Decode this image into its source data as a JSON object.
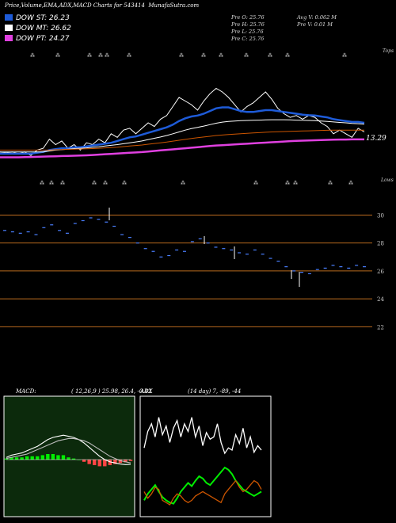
{
  "header": {
    "title": "Price,Volume,EMA,ADX,MACD Charts for 543414",
    "site": "MunafaSutra.com"
  },
  "legend": [
    {
      "label": "DOW ST: 26.23",
      "color": "#1e5bd8"
    },
    {
      "label": "DOW MT: 26.62",
      "color": "#ffffff"
    },
    {
      "label": "DOW PT: 24.27",
      "color": "#e040e0"
    }
  ],
  "stats": {
    "open": "Pre   O: 25.76",
    "high": "Pre   H: 25.76",
    "low": "Pre   L: 25.76",
    "close": "Pre   C: 25.76",
    "avg_volume": "Avg V: 0.062  M",
    "pre_volume": "Pre   V: 0.01 M"
  },
  "price_panel": {
    "top_label": "Tops",
    "bottom_label": "Lows",
    "last_value_label": "13.29"
  },
  "chart_data": [
    {
      "type": "line",
      "name": "price-ema-panel",
      "series": [
        {
          "name": "",
          "color": "#ffffff",
          "values": [
            13.6,
            13.55,
            13.6,
            13.5,
            13.6,
            13.4,
            13.7,
            13.8,
            14.3,
            14.0,
            14.2,
            13.8,
            14.0,
            13.7,
            14.1,
            14.0,
            14.3,
            14.1,
            14.6,
            14.4,
            14.8,
            14.9,
            14.6,
            14.9,
            15.2,
            15.0,
            15.4,
            15.6,
            16.1,
            16.6,
            16.4,
            16.2,
            15.9,
            16.4,
            16.8,
            17.1,
            16.9,
            16.6,
            16.2,
            15.8,
            16.1,
            16.3,
            16.6,
            16.9,
            16.5,
            16.0,
            15.7,
            15.5,
            15.6,
            15.4,
            15.6,
            15.5,
            15.2,
            15.0,
            14.6,
            14.8,
            14.6,
            14.4,
            14.9,
            14.7
          ]
        },
        {
          "name": "",
          "color": "#1e5bd8",
          "values": [
            13.5,
            13.5,
            13.5,
            13.5,
            13.5,
            13.5,
            13.55,
            13.6,
            13.7,
            13.75,
            13.8,
            13.8,
            13.85,
            13.85,
            13.9,
            13.95,
            14.0,
            14.05,
            14.1,
            14.2,
            14.3,
            14.4,
            14.45,
            14.55,
            14.65,
            14.75,
            14.85,
            14.95,
            15.1,
            15.3,
            15.45,
            15.55,
            15.6,
            15.7,
            15.85,
            16.0,
            16.05,
            16.05,
            15.95,
            15.85,
            15.8,
            15.8,
            15.85,
            15.9,
            15.9,
            15.85,
            15.8,
            15.75,
            15.7,
            15.65,
            15.62,
            15.6,
            15.55,
            15.5,
            15.4,
            15.35,
            15.3,
            15.25,
            15.25,
            15.2
          ]
        },
        {
          "name": "",
          "color": "#ffffff",
          "values": [
            13.6,
            13.6,
            13.6,
            13.6,
            13.6,
            13.6,
            13.6,
            13.6,
            13.65,
            13.7,
            13.72,
            13.75,
            13.78,
            13.8,
            13.82,
            13.85,
            13.88,
            13.92,
            13.96,
            14.0,
            14.05,
            14.1,
            14.15,
            14.2,
            14.28,
            14.35,
            14.42,
            14.5,
            14.6,
            14.7,
            14.8,
            14.88,
            14.95,
            15.02,
            15.1,
            15.18,
            15.24,
            15.28,
            15.3,
            15.32,
            15.33,
            15.34,
            15.35,
            15.36,
            15.37,
            15.37,
            15.37,
            15.36,
            15.35,
            15.34,
            15.33,
            15.32,
            15.3,
            15.28,
            15.25,
            15.22,
            15.2,
            15.17,
            15.15,
            15.13
          ]
        },
        {
          "name": "",
          "color": "#cc5500",
          "values": [
            13.7,
            13.7,
            13.7,
            13.7,
            13.7,
            13.7,
            13.7,
            13.7,
            13.7,
            13.72,
            13.73,
            13.74,
            13.75,
            13.76,
            13.77,
            13.78,
            13.8,
            13.82,
            13.84,
            13.86,
            13.89,
            13.92,
            13.95,
            13.98,
            14.02,
            14.06,
            14.1,
            14.14,
            14.19,
            14.24,
            14.29,
            14.34,
            14.38,
            14.42,
            14.46,
            14.5,
            14.53,
            14.56,
            14.58,
            14.6,
            14.62,
            14.64,
            14.66,
            14.68,
            14.7,
            14.71,
            14.72,
            14.73,
            14.74,
            14.75,
            14.76,
            14.77,
            14.78,
            14.79,
            14.8,
            14.8,
            14.8,
            14.8,
            14.8,
            14.8
          ]
        },
        {
          "name": "",
          "color": "#e040e0",
          "values": [
            13.3,
            13.3,
            13.3,
            13.3,
            13.31,
            13.32,
            13.33,
            13.34,
            13.35,
            13.36,
            13.37,
            13.38,
            13.39,
            13.4,
            13.41,
            13.43,
            13.45,
            13.47,
            13.49,
            13.51,
            13.53,
            13.55,
            13.57,
            13.59,
            13.62,
            13.65,
            13.68,
            13.71,
            13.74,
            13.77,
            13.8,
            13.83,
            13.86,
            13.89,
            13.92,
            13.95,
            13.97,
            13.99,
            14.01,
            14.03,
            14.05,
            14.07,
            14.09,
            14.11,
            14.13,
            14.15,
            14.17,
            14.19,
            14.21,
            14.22,
            14.23,
            14.24,
            14.25,
            14.26,
            14.27,
            14.28,
            14.28,
            14.29,
            14.29,
            14.29
          ]
        }
      ],
      "ylim": [
        12.8,
        17.6
      ]
    },
    {
      "type": "scatter",
      "name": "price-ticks-panel",
      "yticks": [
        30,
        28,
        26,
        24,
        22
      ],
      "ylim": [
        21,
        31.5
      ],
      "x": [
        0,
        2,
        4,
        6,
        8,
        10,
        12,
        14,
        16,
        18,
        20,
        22,
        24,
        26,
        28,
        30,
        32,
        34,
        36,
        38,
        40,
        42,
        44,
        46,
        48,
        50,
        52,
        54,
        56,
        58,
        60,
        62,
        64,
        66,
        68,
        70,
        72,
        74,
        76,
        78,
        80,
        82,
        84,
        86,
        88,
        90,
        92
      ],
      "values": [
        28.9,
        28.8,
        28.7,
        28.8,
        28.6,
        29.1,
        29.3,
        28.9,
        28.7,
        29.4,
        29.6,
        29.8,
        29.7,
        29.5,
        29.2,
        28.6,
        28.4,
        28.0,
        27.6,
        27.4,
        27.0,
        27.1,
        27.5,
        27.4,
        28.1,
        28.3,
        28.0,
        27.7,
        27.6,
        27.5,
        27.3,
        27.2,
        27.5,
        27.2,
        26.9,
        26.7,
        26.3,
        26.0,
        25.9,
        25.8,
        26.1,
        26.2,
        26.4,
        26.3,
        26.2,
        26.4,
        26.3
      ]
    },
    {
      "type": "line",
      "name": "macd-panel",
      "title": "MACD:",
      "params": "( 12,26,9 ) 25.98,  26.4, -0.42",
      "series": [
        {
          "name": "",
          "color": "#ffffff",
          "values": [
            0.2,
            0.4,
            0.5,
            0.6,
            0.8,
            1.0,
            1.2,
            1.5,
            1.8,
            2.0,
            2.1,
            2.2,
            2.1,
            2.0,
            1.8,
            1.5,
            1.1,
            0.7,
            0.3,
            0.0,
            -0.2,
            -0.3,
            -0.4,
            -0.45,
            -0.42
          ]
        },
        {
          "name": "",
          "color": "#bbbbbb",
          "values": [
            0.1,
            0.2,
            0.3,
            0.4,
            0.5,
            0.7,
            0.9,
            1.1,
            1.3,
            1.5,
            1.7,
            1.8,
            1.9,
            1.9,
            1.8,
            1.7,
            1.5,
            1.2,
            0.9,
            0.6,
            0.3,
            0.1,
            -0.1,
            -0.2,
            -0.3
          ]
        },
        {
          "name": "",
          "color": "#00ee00",
          "values": [
            0.1,
            0.2,
            0.2,
            0.2,
            0.3,
            0.3,
            0.3,
            0.4,
            0.5,
            0.5,
            0.4,
            0.4,
            0.2,
            0.1,
            0.0,
            -0.2,
            -0.4,
            -0.5,
            -0.6,
            -0.6,
            -0.5,
            -0.4,
            -0.3,
            -0.25,
            -0.12
          ]
        }
      ]
    },
    {
      "type": "line",
      "name": "adx-panel",
      "title": "ADX",
      "params": "(14  day) 7,  -89,  -44",
      "series": [
        {
          "name": "",
          "color": "#ffffff",
          "values": [
            60,
            75,
            82,
            70,
            88,
            72,
            80,
            65,
            78,
            85,
            70,
            82,
            75,
            88,
            70,
            80,
            62,
            74,
            68,
            70,
            82,
            65,
            55,
            60,
            58,
            72,
            64,
            78,
            60,
            70,
            56,
            62,
            58
          ]
        },
        {
          "name": "",
          "color": "#00ee00",
          "values": [
            12,
            18,
            22,
            26,
            20,
            15,
            12,
            10,
            9,
            14,
            20,
            24,
            28,
            25,
            30,
            34,
            32,
            28,
            26,
            30,
            34,
            38,
            42,
            40,
            36,
            30,
            26,
            22,
            20,
            18,
            16,
            18,
            20
          ]
        },
        {
          "name": "",
          "color": "#cc5500",
          "values": [
            20,
            14,
            18,
            24,
            22,
            12,
            10,
            8,
            14,
            18,
            16,
            12,
            10,
            12,
            16,
            18,
            20,
            18,
            16,
            14,
            12,
            10,
            18,
            22,
            26,
            30,
            24,
            20,
            22,
            26,
            30,
            28,
            22
          ]
        }
      ],
      "ylim": [
        0,
        100
      ]
    }
  ]
}
